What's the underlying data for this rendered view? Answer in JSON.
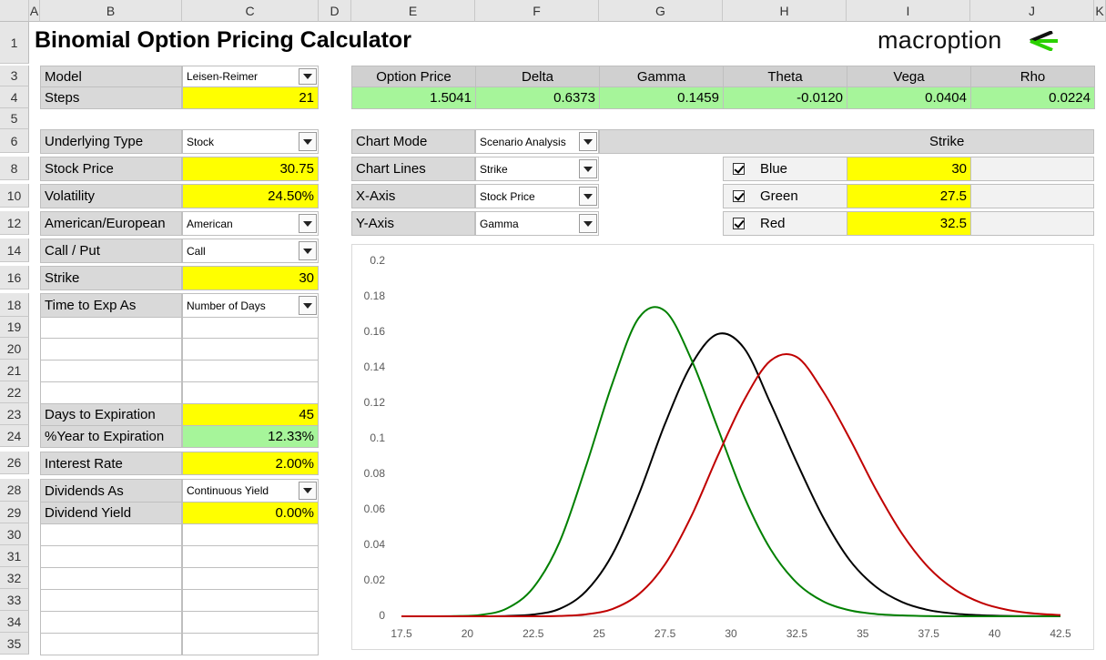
{
  "column_headers": [
    "A",
    "B",
    "C",
    "D",
    "E",
    "F",
    "G",
    "H",
    "I",
    "J",
    "K"
  ],
  "row_headers": [
    "1",
    "3",
    "4",
    "5",
    "6",
    "8",
    "10",
    "12",
    "14",
    "16",
    "18",
    "19",
    "20",
    "21",
    "22",
    "23",
    "24",
    "26",
    "28",
    "29",
    "30",
    "31",
    "32",
    "33",
    "34",
    "35"
  ],
  "header": {
    "title": "Binomial Option Pricing Calculator",
    "logo": "macroption"
  },
  "inputs": [
    {
      "label": "Model",
      "value": "Leisen-Reimer"
    },
    {
      "label": "Steps",
      "value": "21"
    },
    {
      "label": "Underlying Type",
      "value": "Stock"
    },
    {
      "label": "Stock Price",
      "value": "30.75"
    },
    {
      "label": "Volatility",
      "value": "24.50%"
    },
    {
      "label": "American/European",
      "value": "American"
    },
    {
      "label": "Call / Put",
      "value": "Call"
    },
    {
      "label": "Strike",
      "value": "30"
    },
    {
      "label": "Time to Exp As",
      "value": "Number of Days"
    },
    {
      "label": "Days to Expiration",
      "value": "45"
    },
    {
      "label": "%Year to Expiration",
      "value": "12.33%"
    },
    {
      "label": "Interest Rate",
      "value": "2.00%"
    },
    {
      "label": "Dividends As",
      "value": "Continuous Yield"
    },
    {
      "label": "Dividend Yield",
      "value": "0.00%"
    }
  ],
  "results": {
    "headers": [
      "Option Price",
      "Delta",
      "Gamma",
      "Theta",
      "Vega",
      "Rho"
    ],
    "values": [
      "1.5041",
      "0.6373",
      "0.1459",
      "-0.0120",
      "0.0404",
      "0.0224"
    ]
  },
  "chart_settings": {
    "controls": [
      {
        "label": "Chart Mode",
        "value": "Scenario Analysis"
      },
      {
        "label": "Chart Lines",
        "value": "Strike"
      },
      {
        "label": "X-Axis",
        "value": "Stock Price"
      },
      {
        "label": "Y-Axis",
        "value": "Gamma"
      }
    ],
    "strike_header": "Strike",
    "lines": [
      {
        "name": "Blue",
        "value": "30"
      },
      {
        "name": "Green",
        "value": "27.5"
      },
      {
        "name": "Red",
        "value": "32.5"
      }
    ]
  },
  "chart_data": {
    "type": "line",
    "x": [
      17.5,
      18.5,
      19.5,
      20.5,
      21.5,
      22.5,
      23.5,
      24.5,
      25.5,
      26.5,
      27.5,
      28.5,
      29.5,
      30.5,
      31.5,
      32.5,
      33.5,
      34.5,
      35.5,
      36.5,
      37.5,
      38.5,
      39.5,
      40.5,
      41.5,
      42.5
    ],
    "series": [
      {
        "color": "#000000",
        "values": [
          0,
          0,
          0,
          0,
          0.0002,
          0.001,
          0.0042,
          0.0141,
          0.0348,
          0.0685,
          0.1085,
          0.1418,
          0.159,
          0.151,
          0.12,
          0.0866,
          0.0557,
          0.0317,
          0.0166,
          0.008,
          0.0035,
          0.0015,
          0.0006,
          0.0002,
          0.0001,
          0
        ]
      },
      {
        "color": "#008000",
        "values": [
          0,
          0,
          0.0001,
          0.0008,
          0.0044,
          0.0161,
          0.0419,
          0.0845,
          0.1311,
          0.168,
          0.172,
          0.1446,
          0.106,
          0.0674,
          0.0378,
          0.0188,
          0.0084,
          0.0034,
          0.0013,
          0.0005,
          0.0001,
          0,
          0,
          0,
          0,
          0
        ]
      },
      {
        "color": "#c00000",
        "values": [
          0,
          0,
          0,
          0,
          0,
          0,
          0.0002,
          0.0011,
          0.0041,
          0.0124,
          0.0293,
          0.0565,
          0.0904,
          0.1218,
          0.144,
          0.146,
          0.1266,
          0.1002,
          0.0714,
          0.0463,
          0.0274,
          0.015,
          0.0076,
          0.0036,
          0.0016,
          0.0007
        ]
      }
    ],
    "xlim": [
      17.5,
      42.5
    ],
    "xticks": [
      17.5,
      20,
      22.5,
      25,
      27.5,
      30,
      32.5,
      35,
      37.5,
      40,
      42.5
    ],
    "ylim": [
      0,
      0.2
    ],
    "yticks": [
      0,
      0.02,
      0.04,
      0.06,
      0.08,
      0.1,
      0.12,
      0.14,
      0.16,
      0.18,
      0.2
    ],
    "grid": false
  }
}
